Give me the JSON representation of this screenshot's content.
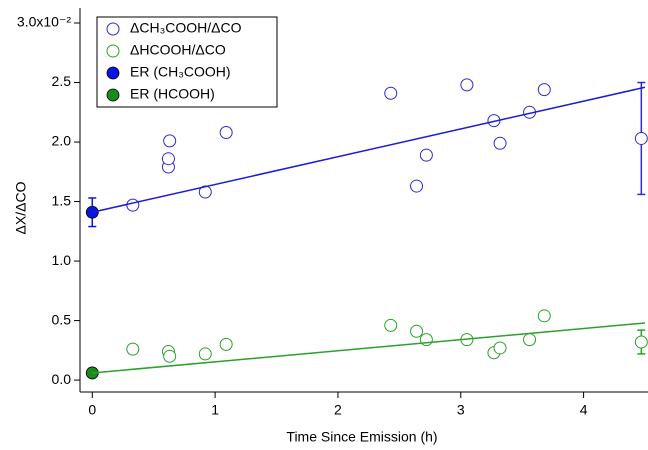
{
  "chart_data": {
    "type": "scatter",
    "x_label": "Time Since Emission (h)",
    "y_label": "ΔX/ΔCO",
    "xlim": [
      -0.1,
      4.5
    ],
    "ylim": [
      -0.1,
      3.0
    ],
    "xticks": [
      0,
      1,
      2,
      3,
      4
    ],
    "yticks": [
      {
        "value": 0,
        "label": "0.0"
      },
      {
        "value": 0.5,
        "label": "0.5"
      },
      {
        "value": 1,
        "label": "1.0"
      },
      {
        "value": 1.5,
        "label": "1.5"
      },
      {
        "value": 2,
        "label": "2.0"
      },
      {
        "value": 2.5,
        "label": "2.5"
      },
      {
        "value": 3,
        "label": "3.0x10⁻²"
      }
    ],
    "legend": "upper-left",
    "series": [
      {
        "name": "ΔCH₃COOH/ΔCO",
        "color": "#2b2bd9",
        "marker": "open",
        "x": [
          0.33,
          0.62,
          0.62,
          0.63,
          0.92,
          1.09,
          2.43,
          2.64,
          2.72,
          3.05,
          3.27,
          3.32,
          3.56,
          3.68,
          4.47
        ],
        "values": [
          1.47,
          1.79,
          1.86,
          2.01,
          1.58,
          2.08,
          2.41,
          1.63,
          1.89,
          2.48,
          2.18,
          1.99,
          2.25,
          2.44,
          2.03
        ],
        "errors": [
          null,
          null,
          null,
          null,
          null,
          null,
          null,
          null,
          null,
          null,
          null,
          null,
          null,
          null,
          0.47
        ]
      },
      {
        "name": "ΔHCOOH/ΔCO",
        "color": "#2ca02c",
        "marker": "open",
        "x": [
          0.33,
          0.62,
          0.63,
          0.92,
          1.09,
          2.43,
          2.64,
          2.72,
          3.05,
          3.27,
          3.32,
          3.56,
          3.68,
          4.47
        ],
        "values": [
          0.26,
          0.24,
          0.2,
          0.22,
          0.3,
          0.46,
          0.41,
          0.34,
          0.34,
          0.23,
          0.27,
          0.34,
          0.54,
          0.32
        ],
        "errors": [
          null,
          null,
          null,
          null,
          null,
          null,
          null,
          null,
          null,
          null,
          null,
          null,
          null,
          0.1
        ]
      },
      {
        "name": "ER (CH₃COOH)",
        "color": "#0a14e0",
        "marker": "filled",
        "x": [
          0
        ],
        "values": [
          1.41
        ],
        "errors": [
          0.12
        ]
      },
      {
        "name": "ER (HCOOH)",
        "color": "#1a8a1a",
        "marker": "filled",
        "x": [
          0
        ],
        "values": [
          0.06
        ]
      },
      {
        "color": "#1a1ad9",
        "style": "line",
        "x": [
          0,
          4.5
        ],
        "values": [
          1.41,
          2.46
        ]
      },
      {
        "color": "#2ca02c",
        "style": "line",
        "x": [
          0,
          4.5
        ],
        "values": [
          0.06,
          0.48
        ]
      }
    ]
  }
}
